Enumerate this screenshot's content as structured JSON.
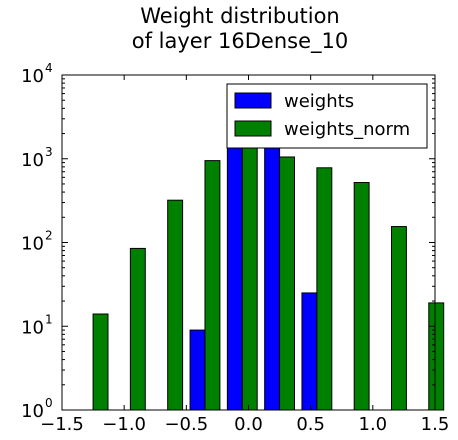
{
  "chart_data": {
    "type": "bar",
    "title": [
      "Weight distribution",
      "of layer 16Dense_10"
    ],
    "xlabel": "",
    "ylabel": "",
    "xlim": [
      -1.5,
      1.5
    ],
    "ylim": [
      1,
      10000
    ],
    "y_scale": "log",
    "x_ticks": [
      "−1.5",
      "−1.0",
      "−0.5",
      "0.0",
      "0.5",
      "1.0",
      "1.5"
    ],
    "y_ticks": [
      "10",
      "10",
      "10",
      "10",
      "10"
    ],
    "y_tick_exponents": [
      "0",
      "1",
      "2",
      "3",
      "4"
    ],
    "legend_position": "top-right",
    "bin_edges": [
      -1.4,
      -1.1,
      -0.8,
      -0.5,
      -0.2,
      0.1,
      0.4,
      0.7,
      1.0,
      1.3,
      1.6
    ],
    "series": [
      {
        "name": "weights",
        "color": "#0000ff",
        "values": [
          1,
          0,
          0,
          9,
          2500,
          2100,
          25,
          0,
          0,
          0
        ]
      },
      {
        "name": "weights_norm",
        "color": "#008000",
        "values": [
          14,
          85,
          320,
          950,
          1900,
          1050,
          780,
          520,
          155,
          19
        ]
      }
    ]
  }
}
